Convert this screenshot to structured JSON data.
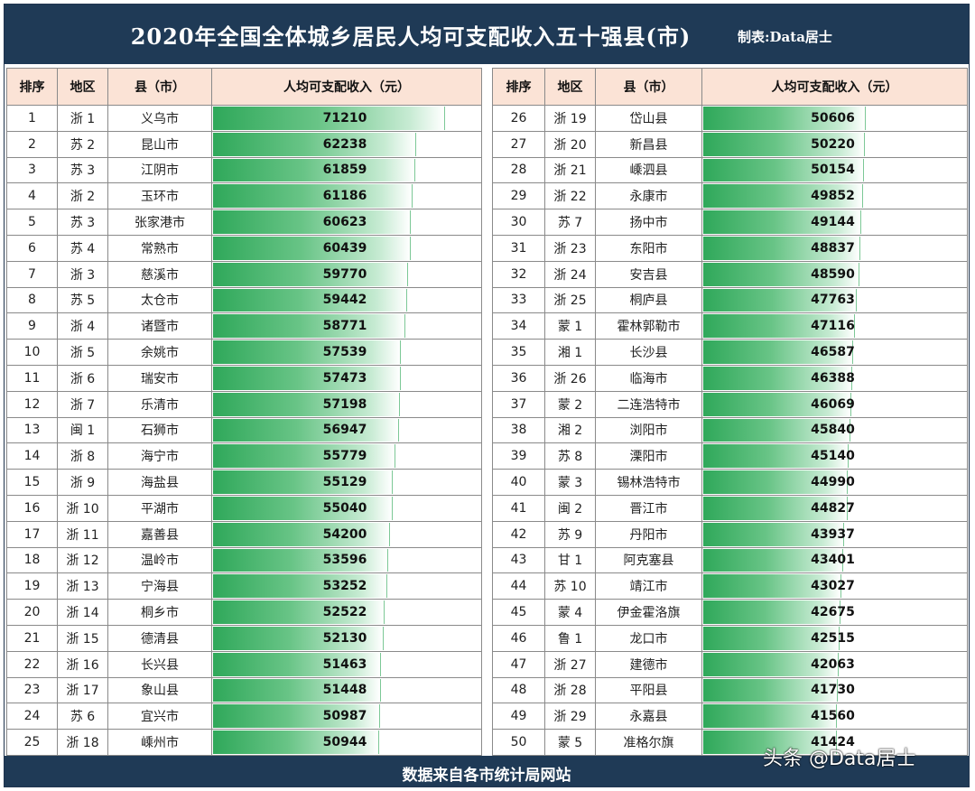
{
  "header": {
    "title": "2020年全国全体城乡居民人均可支配收入五十强县(市)",
    "maker": "制表:Data居士"
  },
  "footer": {
    "source": "数据来自各市统计局网站"
  },
  "watermark": "头条 @Data居士",
  "colors": {
    "header_bg": "#1f3a56",
    "th_bg": "#fbe3d6",
    "bar": "#2fa85a"
  },
  "columns": {
    "rank": "排序",
    "region": "地区",
    "county": "县（市）",
    "income": "人均可支配收入（元）"
  },
  "chart_data": {
    "type": "table",
    "bar_max": 71210,
    "rows": [
      {
        "rank": "1",
        "region": "浙 1",
        "county": "义乌市",
        "income": 71210
      },
      {
        "rank": "2",
        "region": "苏 2",
        "county": "昆山市",
        "income": 62238
      },
      {
        "rank": "3",
        "region": "苏 3",
        "county": "江阴市",
        "income": 61859
      },
      {
        "rank": "4",
        "region": "浙 2",
        "county": "玉环市",
        "income": 61186
      },
      {
        "rank": "5",
        "region": "苏 3",
        "county": "张家港市",
        "income": 60623
      },
      {
        "rank": "6",
        "region": "苏 4",
        "county": "常熟市",
        "income": 60439
      },
      {
        "rank": "7",
        "region": "浙 3",
        "county": "慈溪市",
        "income": 59770
      },
      {
        "rank": "8",
        "region": "苏 5",
        "county": "太仓市",
        "income": 59442
      },
      {
        "rank": "9",
        "region": "浙 4",
        "county": "诸暨市",
        "income": 58771
      },
      {
        "rank": "10",
        "region": "浙 5",
        "county": "余姚市",
        "income": 57539
      },
      {
        "rank": "11",
        "region": "浙 6",
        "county": "瑞安市",
        "income": 57473
      },
      {
        "rank": "12",
        "region": "浙 7",
        "county": "乐清市",
        "income": 57198
      },
      {
        "rank": "13",
        "region": "闽 1",
        "county": "石狮市",
        "income": 56947
      },
      {
        "rank": "14",
        "region": "浙 8",
        "county": "海宁市",
        "income": 55779
      },
      {
        "rank": "15",
        "region": "浙 9",
        "county": "海盐县",
        "income": 55129
      },
      {
        "rank": "16",
        "region": "浙 10",
        "county": "平湖市",
        "income": 55040
      },
      {
        "rank": "17",
        "region": "浙 11",
        "county": "嘉善县",
        "income": 54200
      },
      {
        "rank": "18",
        "region": "浙 12",
        "county": "温岭市",
        "income": 53596
      },
      {
        "rank": "19",
        "region": "浙 13",
        "county": "宁海县",
        "income": 53252
      },
      {
        "rank": "20",
        "region": "浙 14",
        "county": "桐乡市",
        "income": 52522
      },
      {
        "rank": "21",
        "region": "浙 15",
        "county": "德清县",
        "income": 52130
      },
      {
        "rank": "22",
        "region": "浙 16",
        "county": "长兴县",
        "income": 51463
      },
      {
        "rank": "23",
        "region": "浙 17",
        "county": "象山县",
        "income": 51448
      },
      {
        "rank": "24",
        "region": "苏 6",
        "county": "宜兴市",
        "income": 50987
      },
      {
        "rank": "25",
        "region": "浙 18",
        "county": "嵊州市",
        "income": 50944
      },
      {
        "rank": "26",
        "region": "浙 19",
        "county": "岱山县",
        "income": 50606
      },
      {
        "rank": "27",
        "region": "浙 20",
        "county": "新昌县",
        "income": 50220
      },
      {
        "rank": "28",
        "region": "浙 21",
        "county": "嵊泗县",
        "income": 50154
      },
      {
        "rank": "29",
        "region": "浙 22",
        "county": "永康市",
        "income": 49852
      },
      {
        "rank": "30",
        "region": "苏 7",
        "county": "扬中市",
        "income": 49144
      },
      {
        "rank": "31",
        "region": "浙 23",
        "county": "东阳市",
        "income": 48837
      },
      {
        "rank": "32",
        "region": "浙 24",
        "county": "安吉县",
        "income": 48590
      },
      {
        "rank": "33",
        "region": "浙 25",
        "county": "桐庐县",
        "income": 47763
      },
      {
        "rank": "34",
        "region": "蒙 1",
        "county": "霍林郭勒市",
        "income": 47116
      },
      {
        "rank": "35",
        "region": "湘 1",
        "county": "长沙县",
        "income": 46587
      },
      {
        "rank": "36",
        "region": "浙 26",
        "county": "临海市",
        "income": 46388
      },
      {
        "rank": "37",
        "region": "蒙 2",
        "county": "二连浩特市",
        "income": 46069
      },
      {
        "rank": "38",
        "region": "湘 2",
        "county": "浏阳市",
        "income": 45840
      },
      {
        "rank": "39",
        "region": "苏 8",
        "county": "溧阳市",
        "income": 45140
      },
      {
        "rank": "40",
        "region": "蒙 3",
        "county": "锡林浩特市",
        "income": 44990
      },
      {
        "rank": "41",
        "region": "闽 2",
        "county": "晋江市",
        "income": 44827
      },
      {
        "rank": "42",
        "region": "苏 9",
        "county": "丹阳市",
        "income": 43937
      },
      {
        "rank": "43",
        "region": "甘 1",
        "county": "阿克塞县",
        "income": 43401
      },
      {
        "rank": "44",
        "region": "苏 10",
        "county": "靖江市",
        "income": 43027
      },
      {
        "rank": "45",
        "region": "蒙 4",
        "county": "伊金霍洛旗",
        "income": 42675
      },
      {
        "rank": "46",
        "region": "鲁 1",
        "county": "龙口市",
        "income": 42515
      },
      {
        "rank": "47",
        "region": "浙 27",
        "county": "建德市",
        "income": 42063
      },
      {
        "rank": "48",
        "region": "浙 28",
        "county": "平阳县",
        "income": 41730
      },
      {
        "rank": "49",
        "region": "浙 29",
        "county": "永嘉县",
        "income": 41560
      },
      {
        "rank": "50",
        "region": "蒙 5",
        "county": "准格尔旗",
        "income": 41424
      }
    ]
  }
}
